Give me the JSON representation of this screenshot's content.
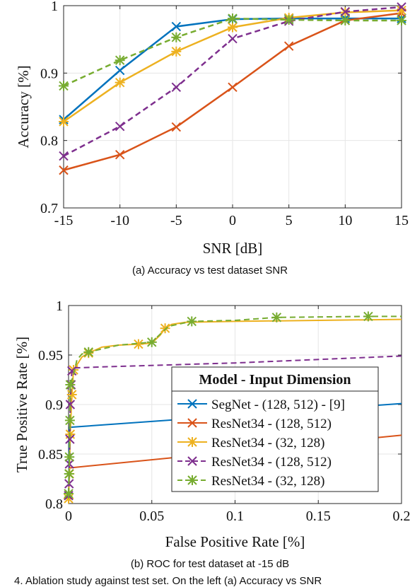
{
  "figure": {
    "caption_a": "(a) Accuracy vs test dataset SNR",
    "caption_b": "(b) ROC for test dataset at -15 dB",
    "footer": "4.   Ablation study against test set. On the left (a) Accuracy vs SNR"
  },
  "colors": {
    "blue": "#0072BD",
    "orange": "#D95319",
    "yellow": "#EDB120",
    "purple": "#7E2F8E",
    "green": "#77AC30"
  },
  "chart_data": [
    {
      "type": "line",
      "title": "",
      "xlabel": "SNR [dB]",
      "ylabel": "Accuracy [%]",
      "xlim": [
        -15,
        15
      ],
      "ylim": [
        0.7,
        1.0
      ],
      "xticks": [
        "-15",
        "-10",
        "-5",
        "0",
        "5",
        "10",
        "15"
      ],
      "yticks": [
        "0.7",
        "0.8",
        "0.9",
        "1"
      ],
      "grid": true,
      "x": [
        -15,
        -10,
        -5,
        0,
        5,
        10,
        15
      ],
      "series": [
        {
          "color": "blue",
          "dash": "solid",
          "marker": "x",
          "values": [
            0.831,
            0.904,
            0.969,
            0.98,
            0.981,
            0.981,
            0.981
          ]
        },
        {
          "color": "orange",
          "dash": "solid",
          "marker": "x",
          "values": [
            0.756,
            0.779,
            0.82,
            0.879,
            0.94,
            0.978,
            0.989
          ]
        },
        {
          "color": "yellow",
          "dash": "solid",
          "marker": "star",
          "values": [
            0.828,
            0.886,
            0.932,
            0.968,
            0.982,
            0.99,
            0.993
          ]
        },
        {
          "color": "purple",
          "dash": "dashed",
          "marker": "x",
          "values": [
            0.777,
            0.821,
            0.879,
            0.951,
            0.977,
            0.991,
            0.998
          ]
        },
        {
          "color": "green",
          "dash": "dashed",
          "marker": "star",
          "values": [
            0.881,
            0.919,
            0.953,
            0.981,
            0.979,
            0.978,
            0.978
          ]
        }
      ]
    },
    {
      "type": "line",
      "title": "",
      "xlabel": "False Positive Rate [%]",
      "ylabel": "True Positive Rate [%]",
      "xlim": [
        0,
        0.2
      ],
      "ylim": [
        0.8,
        1.0
      ],
      "xticks": [
        "0",
        "0.05",
        "0.1",
        "0.15",
        "0.2"
      ],
      "yticks": [
        "0.8",
        "0.85",
        "0.9",
        "0.95",
        "1"
      ],
      "grid": true,
      "legend": {
        "title": "Model - Input Dimension",
        "placement": "center-right",
        "entries": [
          "SegNet - (128, 512) - [9]",
          "ResNet34 - (128, 512)",
          "ResNet34 - (32, 128)",
          "ResNet34 - (128, 512)",
          "ResNet34 - (32, 128)"
        ]
      },
      "series": [
        {
          "name": "SegNet - (128, 512) - [9]",
          "color": "blue",
          "dash": "solid",
          "marker": "none",
          "points": [
            [
              0,
              0.8
            ],
            [
              0.0005,
              0.877
            ],
            [
              0.2,
              0.901
            ]
          ]
        },
        {
          "name": "ResNet34 - (128, 512)",
          "color": "orange",
          "dash": "solid",
          "marker": "none",
          "points": [
            [
              0,
              0.8
            ],
            [
              0.0005,
              0.836
            ],
            [
              0.2,
              0.869
            ]
          ]
        },
        {
          "name": "ResNet34 - (32, 128)",
          "color": "yellow",
          "dash": "solid",
          "marker": "star",
          "points": [
            [
              0,
              0.805
            ],
            [
              0.0005,
              0.83
            ],
            [
              0.001,
              0.87
            ],
            [
              0.002,
              0.91
            ],
            [
              0.003,
              0.935
            ],
            [
              0.005,
              0.94
            ],
            [
              0.008,
              0.948
            ],
            [
              0.012,
              0.952
            ],
            [
              0.016,
              0.955
            ],
            [
              0.02,
              0.958
            ],
            [
              0.03,
              0.96
            ],
            [
              0.042,
              0.961
            ],
            [
              0.05,
              0.962
            ],
            [
              0.055,
              0.97
            ],
            [
              0.058,
              0.977
            ],
            [
              0.062,
              0.981
            ],
            [
              0.07,
              0.983
            ],
            [
              0.1,
              0.984
            ],
            [
              0.15,
              0.985
            ],
            [
              0.2,
              0.986
            ]
          ],
          "markers": [
            [
              0,
              0.805
            ],
            [
              0.0005,
              0.83
            ],
            [
              0.001,
              0.87
            ],
            [
              0.002,
              0.91
            ],
            [
              0.003,
              0.935
            ],
            [
              0.012,
              0.952
            ],
            [
              0.042,
              0.961
            ],
            [
              0.058,
              0.977
            ]
          ]
        },
        {
          "name": "ResNet34 - (128, 512)",
          "color": "purple",
          "dash": "dashed",
          "marker": "x",
          "points": [
            [
              0,
              0.808
            ],
            [
              0.0003,
              0.82
            ],
            [
              0.0005,
              0.84
            ],
            [
              0.0008,
              0.865
            ],
            [
              0.001,
              0.9
            ],
            [
              0.0015,
              0.92
            ],
            [
              0.002,
              0.934
            ],
            [
              0.004,
              0.937
            ],
            [
              0.02,
              0.938
            ],
            [
              0.1,
              0.942
            ],
            [
              0.2,
              0.949
            ]
          ],
          "markers": [
            [
              0,
              0.808
            ],
            [
              0.0003,
              0.82
            ],
            [
              0.0005,
              0.84
            ],
            [
              0.0008,
              0.865
            ],
            [
              0.001,
              0.9
            ],
            [
              0.0015,
              0.92
            ],
            [
              0.002,
              0.934
            ]
          ]
        },
        {
          "name": "ResNet34 - (32, 128)",
          "color": "green",
          "dash": "dashed",
          "marker": "star",
          "points": [
            [
              0,
              0.81
            ],
            [
              0.0003,
              0.83
            ],
            [
              0.0005,
              0.847
            ],
            [
              0.0008,
              0.884
            ],
            [
              0.001,
              0.92
            ],
            [
              0.003,
              0.93
            ],
            [
              0.005,
              0.945
            ],
            [
              0.008,
              0.951
            ],
            [
              0.012,
              0.953
            ],
            [
              0.03,
              0.96
            ],
            [
              0.05,
              0.963
            ],
            [
              0.06,
              0.979
            ],
            [
              0.074,
              0.984
            ],
            [
              0.1,
              0.985
            ],
            [
              0.125,
              0.988
            ],
            [
              0.18,
              0.989
            ],
            [
              0.2,
              0.989
            ]
          ],
          "markers": [
            [
              0,
              0.81
            ],
            [
              0.0003,
              0.83
            ],
            [
              0.0005,
              0.847
            ],
            [
              0.0008,
              0.884
            ],
            [
              0.001,
              0.92
            ],
            [
              0.012,
              0.953
            ],
            [
              0.05,
              0.963
            ],
            [
              0.074,
              0.984
            ],
            [
              0.125,
              0.988
            ],
            [
              0.18,
              0.989
            ]
          ]
        }
      ]
    }
  ]
}
